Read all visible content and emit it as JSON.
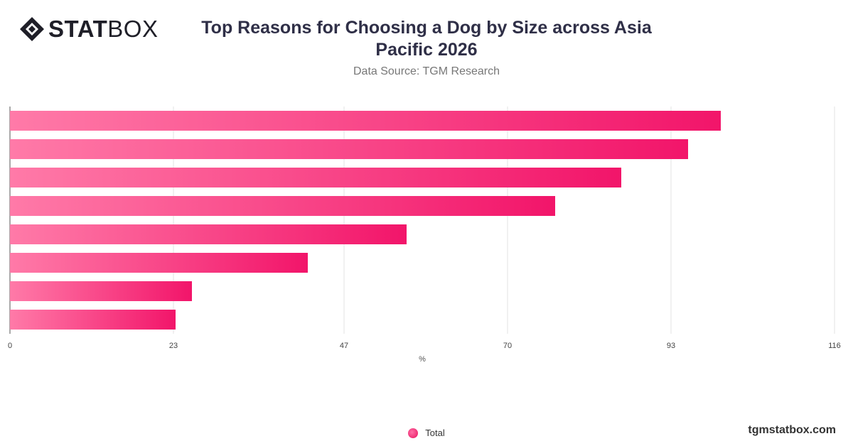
{
  "brand": {
    "logo_bold": "STAT",
    "logo_light": "BOX",
    "website": "tgmstatbox.com"
  },
  "colors": {
    "bar_start": "#ff7aa8",
    "bar_end": "#f2156a",
    "grid": "#e3e3e3",
    "axis": "#555555"
  },
  "chart_data": {
    "type": "bar",
    "orientation": "horizontal",
    "title": "Top Reasons for Choosing a Dog by Size across Asia Pacific 2026",
    "subtitle": "Data Source: TGM Research",
    "xlabel": "%",
    "ylabel": "",
    "xlim": [
      0,
      116
    ],
    "x_ticks": [
      0,
      23,
      47,
      70,
      93,
      116
    ],
    "x_tick_labels": [
      "0",
      "23",
      "47",
      "70",
      "93",
      "116"
    ],
    "grid": true,
    "legend_position": "bottom",
    "categories": [
      "",
      "",
      "",
      "",
      "",
      "",
      "",
      ""
    ],
    "series": [
      {
        "name": "Total",
        "values": [
          100,
          95.4,
          86,
          76.7,
          55.8,
          41.9,
          25.6,
          23.3
        ]
      }
    ]
  }
}
